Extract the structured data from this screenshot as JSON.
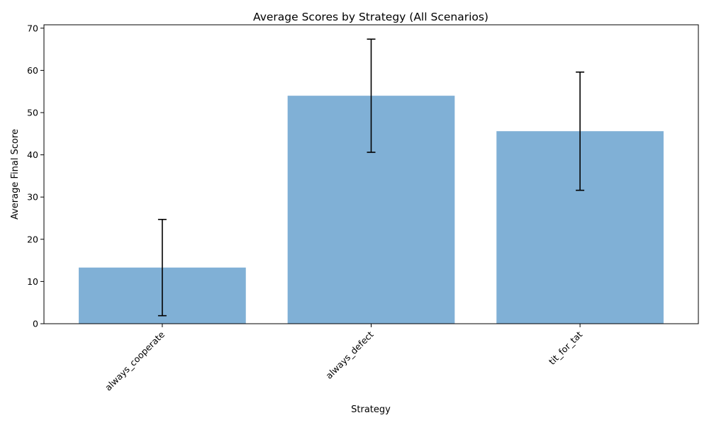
{
  "chart_data": {
    "type": "bar",
    "title": "Average Scores by Strategy (All Scenarios)",
    "xlabel": "Strategy",
    "ylabel": "Average Final Score",
    "categories": [
      "always_cooperate",
      "always_defect",
      "tit_for_tat"
    ],
    "values": [
      13.3,
      54.0,
      45.6
    ],
    "errors": [
      11.4,
      13.4,
      14.0
    ],
    "ylim": [
      0,
      70.8
    ],
    "yticks": [
      0,
      10,
      20,
      30,
      40,
      50,
      60,
      70
    ],
    "xtick_rotation_deg": 45,
    "bar_color": "#4a8fc4",
    "bar_opacity": 0.7,
    "error_color": "#000000",
    "grid": false,
    "legend": "none"
  }
}
